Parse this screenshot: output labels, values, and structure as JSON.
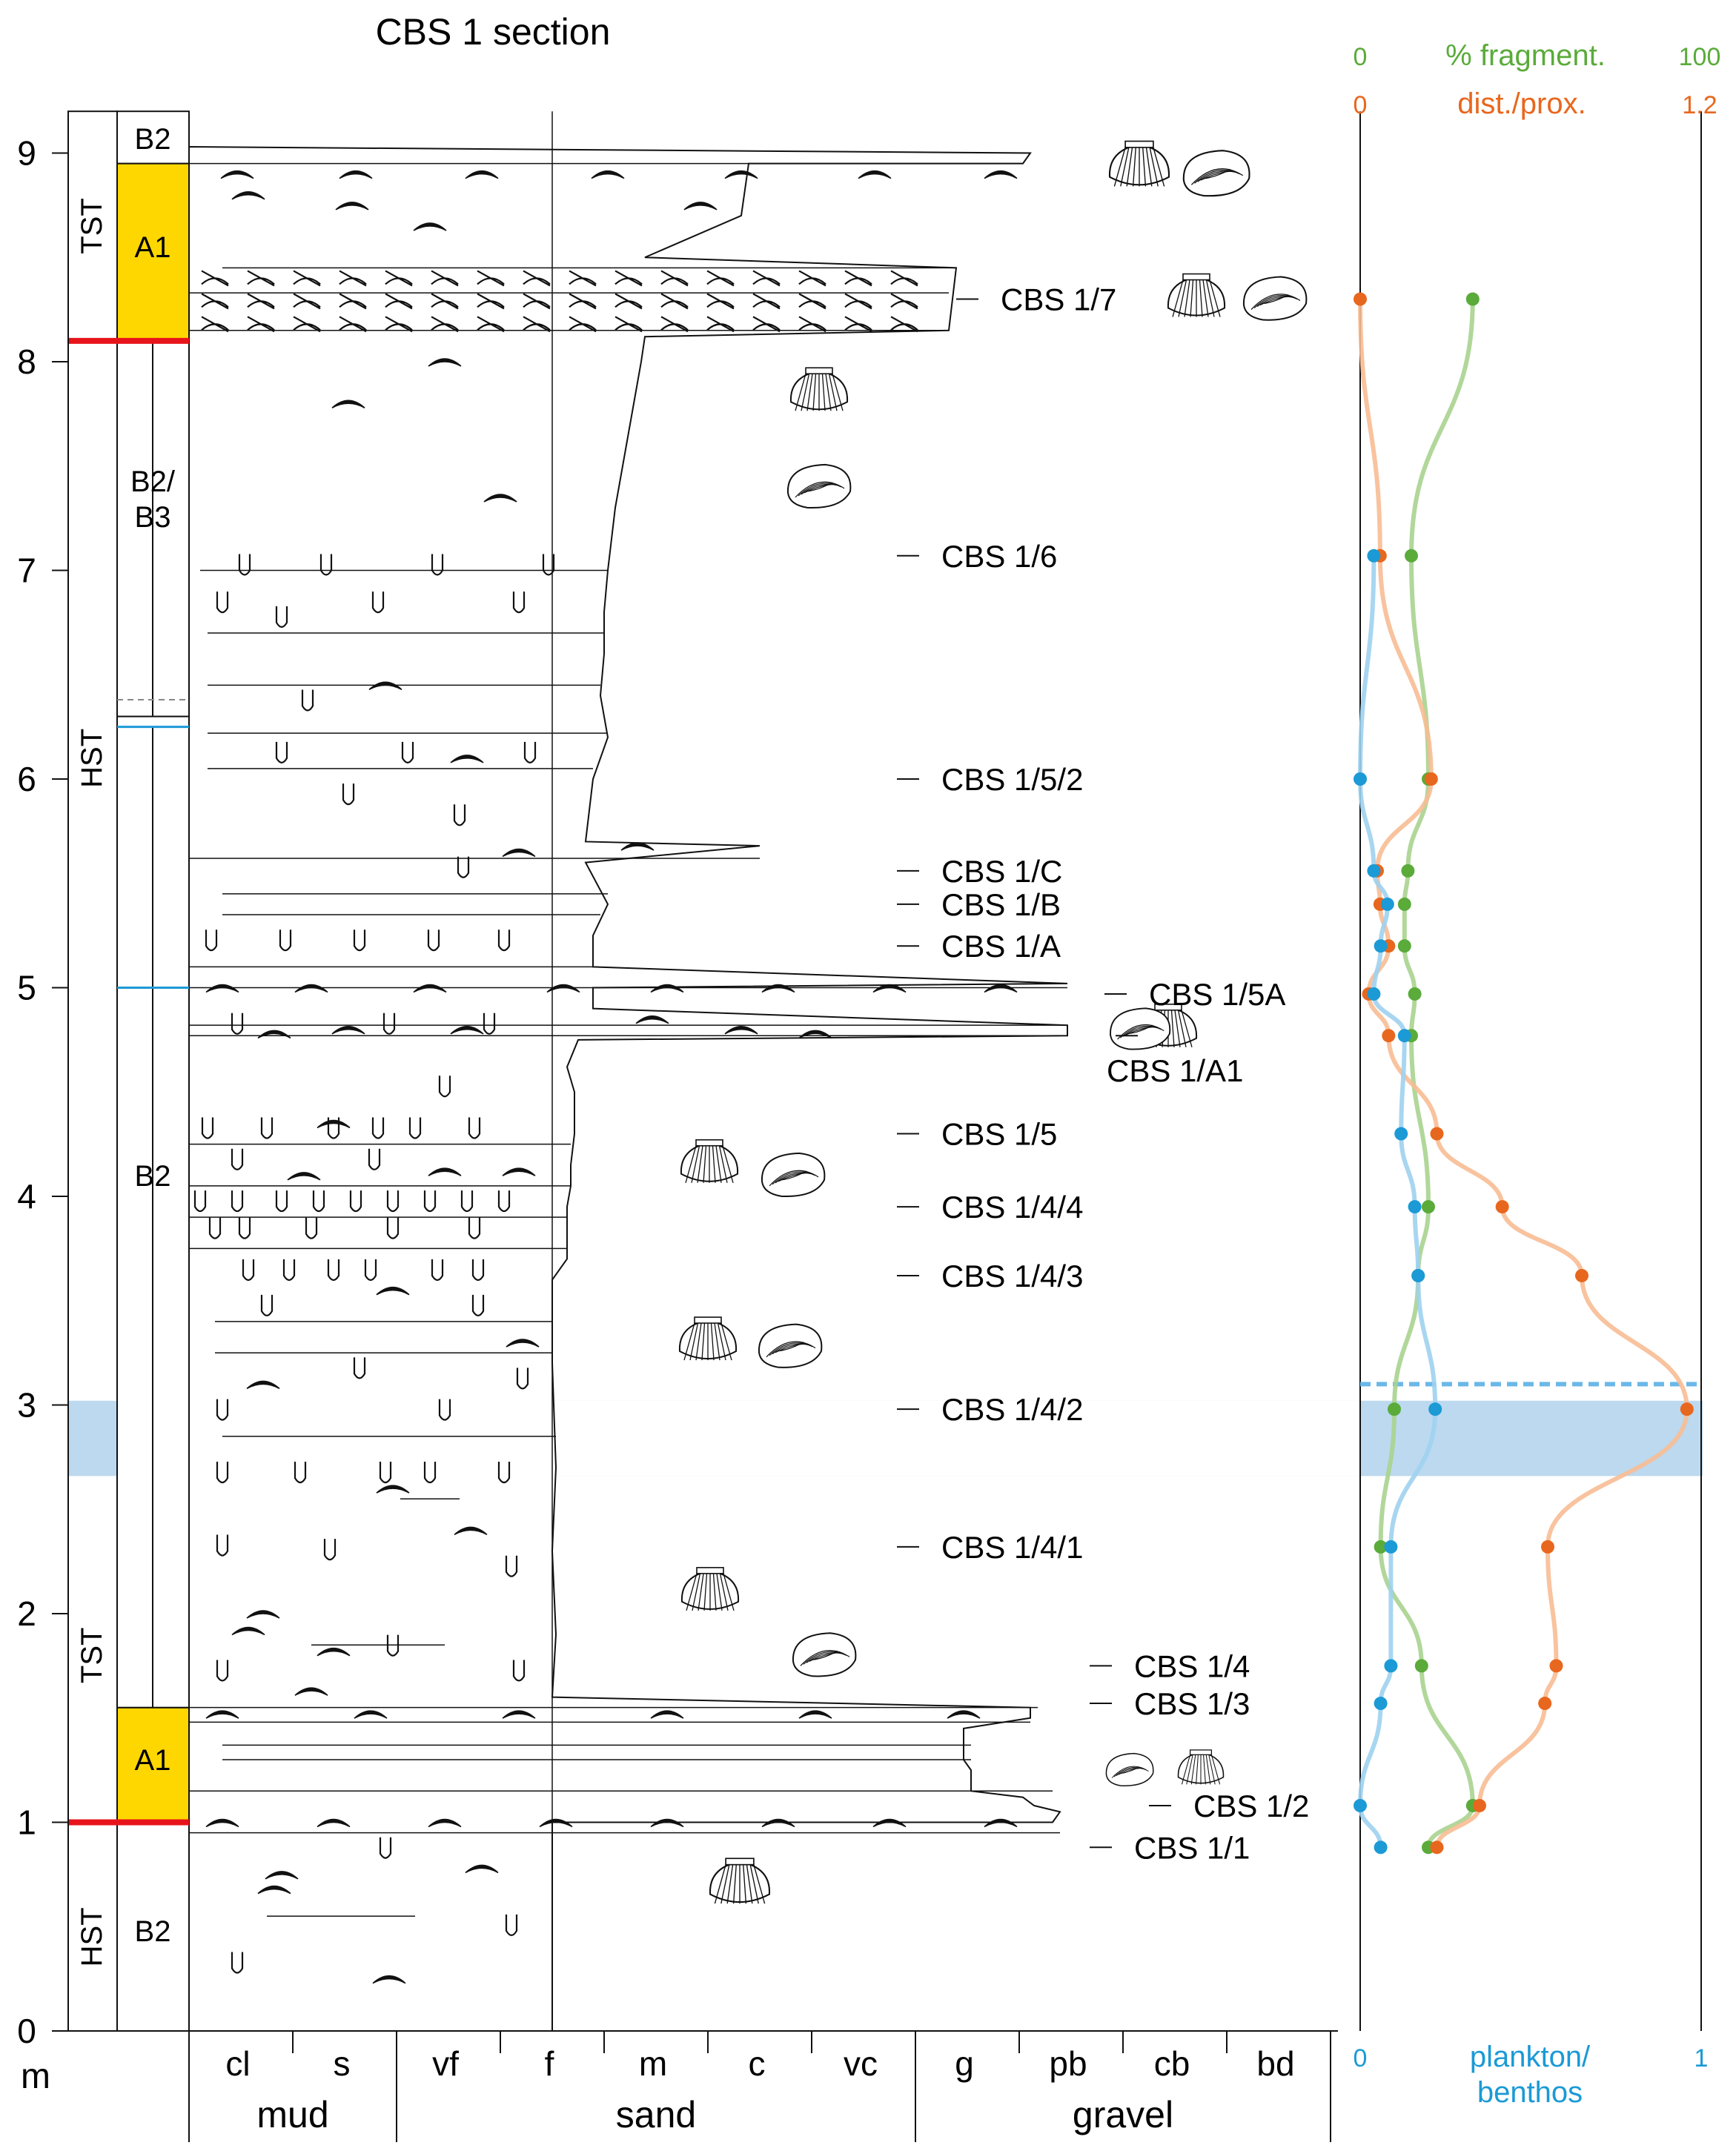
{
  "title": "CBS 1 section",
  "depth_axis": {
    "unit": "m",
    "ticks": [
      "0",
      "1",
      "2",
      "3",
      "4",
      "5",
      "6",
      "7",
      "8",
      "9"
    ]
  },
  "grain_axis": {
    "classes": [
      "cl",
      "s",
      "vf",
      "f",
      "m",
      "c",
      "vc",
      "g",
      "pb",
      "cb",
      "bd"
    ],
    "groups": [
      "mud",
      "sand",
      "gravel"
    ]
  },
  "systems_tracts": [
    {
      "label": "HST",
      "from": 0,
      "to": 1.0
    },
    {
      "label": "TST",
      "from": 1.0,
      "to": 2.7
    },
    {
      "label": "HST",
      "from": 2.7,
      "to": 8.1
    },
    {
      "label": "TST",
      "from": 8.1,
      "to": 9.4
    }
  ],
  "facies": [
    {
      "label": "B2",
      "from": 0,
      "to": 1.0,
      "fill": "#ffffff"
    },
    {
      "label": "A1",
      "from": 1.0,
      "to": 1.55,
      "fill": "#ffd700"
    },
    {
      "label": "B2",
      "from": 1.55,
      "to": 6.3,
      "fill": "#ffffff"
    },
    {
      "label": "B2/\nB3",
      "from": 6.3,
      "to": 8.1,
      "fill": "#ffffff"
    },
    {
      "label": "A1",
      "from": 8.1,
      "to": 8.95,
      "fill": "#ffd700"
    },
    {
      "label": "B2",
      "from": 8.95,
      "to": 9.2,
      "fill": "#ffffff"
    }
  ],
  "samples": [
    "CBS 1/1",
    "CBS 1/2",
    "CBS 1/3",
    "CBS 1/4",
    "CBS 1/4/1",
    "CBS 1/4/2",
    "CBS 1/4/3",
    "CBS 1/4/4",
    "CBS 1/5",
    "CBS 1/A1",
    "CBS 1/5A",
    "CBS 1/A",
    "CBS 1/B",
    "CBS 1/C",
    "CBS 1/5/2",
    "CBS 1/6",
    "CBS 1/7"
  ],
  "proxy_axes": {
    "fragment": {
      "label": "% fragment.",
      "min": "0",
      "max": "100",
      "color": "#5aab3a"
    },
    "dist_prox": {
      "label": "dist./prox.",
      "min": "0",
      "max": "1.2",
      "color": "#e8671e"
    },
    "plankton": {
      "label": "plankton/\nbenthos",
      "min": "0",
      "max": "1",
      "color": "#1b9ad6"
    }
  },
  "colors": {
    "boundary": "#e8141b",
    "facies_a1": "#ffd700",
    "band": "#bcd9ef",
    "dashed": "#6bb8e8"
  },
  "chart_data": {
    "type": "scatter",
    "depth_m": [
      0.88,
      1.08,
      1.57,
      1.75,
      2.32,
      2.98,
      3.62,
      3.95,
      4.3,
      4.77,
      4.97,
      5.2,
      5.4,
      5.56,
      6.0,
      7.07,
      8.3
    ],
    "series": [
      {
        "name": "% fragment.",
        "xmax": 100,
        "values": [
          20,
          33,
          null,
          18,
          6,
          10,
          17,
          20,
          null,
          15,
          16,
          13,
          13,
          14,
          20,
          15,
          33
        ]
      },
      {
        "name": "dist./prox.",
        "xmax": 1.2,
        "values": [
          0.27,
          0.42,
          0.65,
          0.69,
          0.66,
          1.15,
          0.78,
          0.5,
          0.27,
          0.1,
          0.03,
          0.1,
          0.07,
          0.06,
          0.25,
          0.07,
          0.0
        ]
      },
      {
        "name": "plankton/benthos",
        "xmax": 1,
        "values": [
          0.06,
          0.0,
          0.06,
          0.09,
          0.09,
          0.22,
          0.17,
          0.16,
          0.12,
          0.13,
          0.04,
          0.06,
          0.08,
          0.04,
          0.0,
          0.04,
          null
        ]
      }
    ]
  }
}
